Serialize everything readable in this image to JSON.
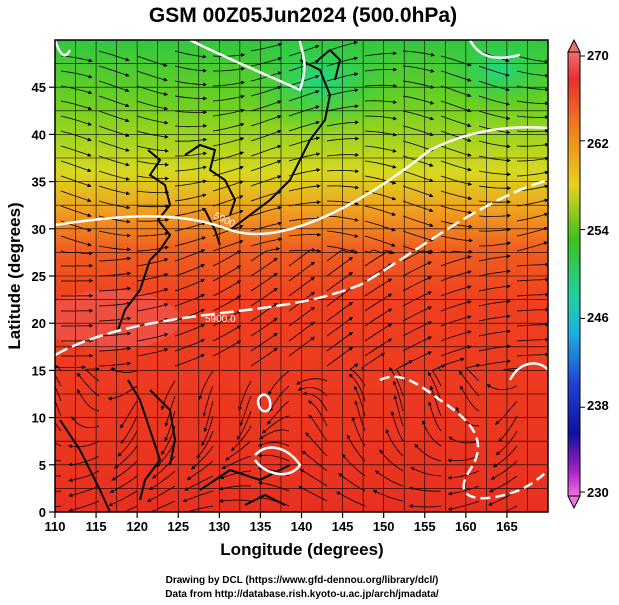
{
  "title": "GSM 00Z05Jun2024 (500.0hPa)",
  "xlabel": "Longitude (degrees)",
  "ylabel": "Latitude  (degrees)",
  "x_ticks": [
    "110",
    "115",
    "120",
    "125",
    "130",
    "135",
    "140",
    "145",
    "150",
    "155",
    "160",
    "165"
  ],
  "y_ticks": [
    "0",
    "5",
    "10",
    "15",
    "20",
    "25",
    "30",
    "35",
    "40",
    "45"
  ],
  "colorbar": {
    "labels": [
      "270",
      "262",
      "254",
      "246",
      "238",
      "230"
    ]
  },
  "contour_label": "5900.0",
  "contour_label_2": "5900",
  "credits": {
    "line1": "Drawing by DCL (https://www.gfd-dennou.org/library/dcl/)",
    "line2": "Data from http://database.rish.kyoto-u.ac.jp/arch/jmadata/"
  }
}
